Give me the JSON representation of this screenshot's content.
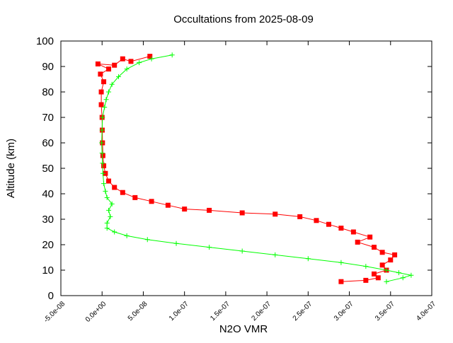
{
  "chart_data": {
    "type": "scatter",
    "title": "Occultations from 2025-08-09",
    "xlabel": "N2O VMR",
    "ylabel": "Altitude (km)",
    "xlim": [
      -5e-08,
      4e-07
    ],
    "ylim": [
      0,
      100
    ],
    "x_ticks": [
      -5e-08,
      0,
      5e-08,
      1e-07,
      1.5e-07,
      2e-07,
      2.5e-07,
      3e-07,
      3.5e-07,
      4e-07
    ],
    "x_tick_labels": [
      "-5.0e-08",
      "0.0e+00",
      "5.0e-08",
      "1.0e-07",
      "1.5e-07",
      "2.0e-07",
      "2.5e-07",
      "3.0e-07",
      "3.5e-07",
      "4.0e-07"
    ],
    "y_ticks": [
      0,
      10,
      20,
      30,
      40,
      50,
      60,
      70,
      80,
      90,
      100
    ],
    "y_tick_labels": [
      "0",
      "10",
      "20",
      "30",
      "40",
      "50",
      "60",
      "70",
      "80",
      "90",
      "100"
    ],
    "grid": false,
    "legend": "none",
    "series": [
      {
        "color": "#ff0000",
        "marker": "filled-square",
        "line": true,
        "points": [
          [
            2.9e-07,
            5.5
          ],
          [
            3.2e-07,
            6.0
          ],
          [
            3.35e-07,
            7.0
          ],
          [
            3.3e-07,
            8.5
          ],
          [
            3.45e-07,
            10.0
          ],
          [
            3.4e-07,
            12.0
          ],
          [
            3.5e-07,
            14.0
          ],
          [
            3.55e-07,
            16.0
          ],
          [
            3.4e-07,
            17.0
          ],
          [
            3.3e-07,
            19.0
          ],
          [
            3.1e-07,
            21.0
          ],
          [
            3.25e-07,
            23.0
          ],
          [
            3.05e-07,
            25.0
          ],
          [
            2.9e-07,
            26.5
          ],
          [
            2.75e-07,
            28.0
          ],
          [
            2.6e-07,
            29.5
          ],
          [
            2.4e-07,
            31.0
          ],
          [
            2.1e-07,
            32.0
          ],
          [
            1.7e-07,
            32.5
          ],
          [
            1.3e-07,
            33.5
          ],
          [
            1e-07,
            34.0
          ],
          [
            8e-08,
            35.5
          ],
          [
            6e-08,
            37.0
          ],
          [
            4e-08,
            38.5
          ],
          [
            2.5e-08,
            40.5
          ],
          [
            1.5e-08,
            42.5
          ],
          [
            8e-09,
            45.0
          ],
          [
            4e-09,
            48.0
          ],
          [
            2e-09,
            51.0
          ],
          [
            1e-09,
            55.0
          ],
          [
            5e-10,
            60.0
          ],
          [
            2e-10,
            65.0
          ],
          [
            0.0,
            70.0
          ],
          [
            -1e-09,
            75.0
          ],
          [
            -1e-09,
            80.0
          ],
          [
            2e-09,
            84.0
          ],
          [
            -2e-09,
            87.0
          ],
          [
            8e-09,
            89.0
          ],
          [
            -5e-09,
            91.0
          ],
          [
            1.5e-08,
            90.5
          ],
          [
            2.5e-08,
            93.0
          ],
          [
            3.5e-08,
            92.0
          ],
          [
            5.8e-08,
            94.0
          ]
        ]
      },
      {
        "color": "#00ff00",
        "marker": "plus",
        "line": true,
        "points": [
          [
            3.45e-07,
            5.5
          ],
          [
            3.65e-07,
            7.0
          ],
          [
            3.75e-07,
            8.0
          ],
          [
            3.6e-07,
            9.0
          ],
          [
            3.45e-07,
            10.0
          ],
          [
            3.2e-07,
            11.5
          ],
          [
            2.9e-07,
            13.0
          ],
          [
            2.5e-07,
            14.5
          ],
          [
            2.1e-07,
            16.0
          ],
          [
            1.7e-07,
            17.5
          ],
          [
            1.3e-07,
            19.0
          ],
          [
            9e-08,
            20.5
          ],
          [
            5.5e-08,
            22.0
          ],
          [
            3e-08,
            23.5
          ],
          [
            1.5e-08,
            25.0
          ],
          [
            6e-09,
            26.5
          ],
          [
            6e-09,
            28.5
          ],
          [
            1e-08,
            31.0
          ],
          [
            8e-09,
            33.5
          ],
          [
            1.2e-08,
            36.0
          ],
          [
            6e-09,
            38.5
          ],
          [
            4e-09,
            41.0
          ],
          [
            2e-09,
            44.0
          ],
          [
            1e-09,
            48.0
          ],
          [
            5e-10,
            52.0
          ],
          [
            0.0,
            56.0
          ],
          [
            -5e-10,
            60.0
          ],
          [
            0.0,
            65.0
          ],
          [
            5e-10,
            70.0
          ],
          [
            3e-09,
            74.0
          ],
          [
            5e-09,
            77.0
          ],
          [
            8e-09,
            80.0
          ],
          [
            1.2e-08,
            83.0
          ],
          [
            2e-08,
            86.0
          ],
          [
            3e-08,
            89.0
          ],
          [
            4.5e-08,
            91.5
          ],
          [
            6e-08,
            93.0
          ],
          [
            8.5e-08,
            94.5
          ]
        ]
      }
    ]
  }
}
